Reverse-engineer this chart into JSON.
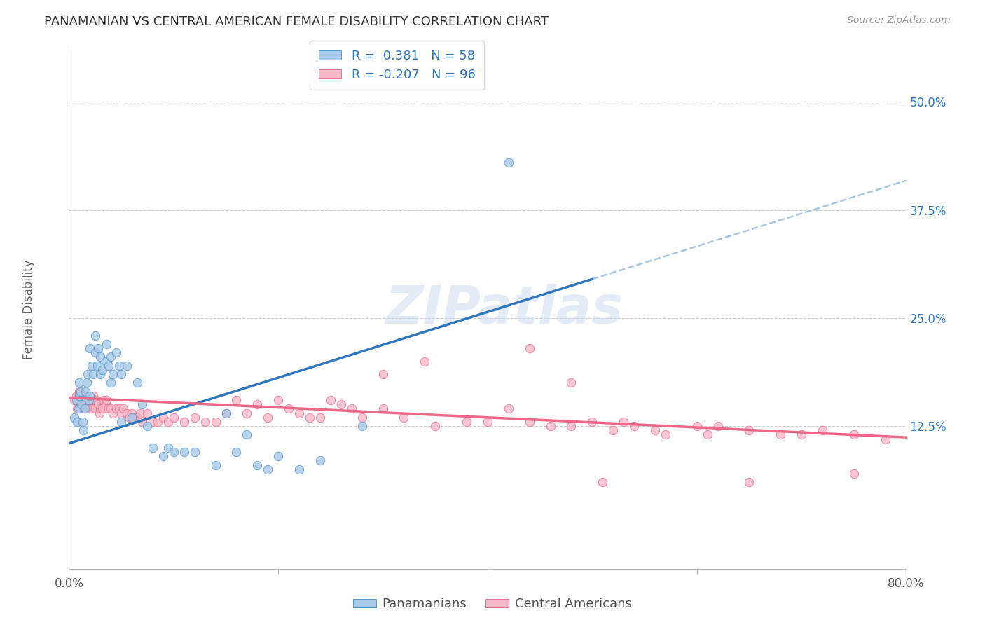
{
  "title": "PANAMANIAN VS CENTRAL AMERICAN FEMALE DISABILITY CORRELATION CHART",
  "source": "Source: ZipAtlas.com",
  "ylabel": "Female Disability",
  "ytick_labels": [
    "12.5%",
    "25.0%",
    "37.5%",
    "50.0%"
  ],
  "ytick_values": [
    0.125,
    0.25,
    0.375,
    0.5
  ],
  "xlim": [
    0.0,
    0.8
  ],
  "ylim": [
    -0.04,
    0.56
  ],
  "watermark_text": "ZIPatlas",
  "legend_R1": "0.381",
  "legend_N1": "58",
  "legend_R2": "-0.207",
  "legend_N2": "96",
  "color_blue_fill": "#a8c8e8",
  "color_blue_edge": "#5599cc",
  "color_pink_fill": "#f5b8c8",
  "color_pink_edge": "#e87090",
  "color_line_blue": "#3377bb",
  "color_line_pink": "#ee6688",
  "color_dashed": "#99bbdd",
  "background_color": "#ffffff",
  "grid_color": "#cccccc",
  "grid_style": "--",
  "blue_line_x0": 0.0,
  "blue_line_y0": 0.105,
  "blue_line_x1": 0.5,
  "blue_line_y1": 0.295,
  "pink_line_x0": 0.0,
  "pink_line_y0": 0.158,
  "pink_line_x1": 0.8,
  "pink_line_y1": 0.112,
  "dash_line_x0": 0.5,
  "dash_line_y0": 0.295,
  "dash_line_x1": 0.8,
  "dash_line_y1": 0.409,
  "pan_x": [
    0.005,
    0.007,
    0.008,
    0.009,
    0.01,
    0.01,
    0.011,
    0.012,
    0.013,
    0.014,
    0.015,
    0.016,
    0.017,
    0.018,
    0.019,
    0.02,
    0.02,
    0.022,
    0.023,
    0.025,
    0.025,
    0.027,
    0.028,
    0.03,
    0.03,
    0.032,
    0.035,
    0.036,
    0.038,
    0.04,
    0.04,
    0.042,
    0.045,
    0.048,
    0.05,
    0.055,
    0.06,
    0.065,
    0.07,
    0.075,
    0.08,
    0.09,
    0.095,
    0.1,
    0.11,
    0.12,
    0.14,
    0.16,
    0.18,
    0.2,
    0.22,
    0.24,
    0.15,
    0.17,
    0.19,
    0.05,
    0.28,
    0.42
  ],
  "pan_y": [
    0.135,
    0.155,
    0.13,
    0.145,
    0.16,
    0.175,
    0.165,
    0.15,
    0.13,
    0.12,
    0.145,
    0.165,
    0.175,
    0.185,
    0.155,
    0.16,
    0.215,
    0.195,
    0.185,
    0.21,
    0.23,
    0.195,
    0.215,
    0.185,
    0.205,
    0.19,
    0.2,
    0.22,
    0.195,
    0.205,
    0.175,
    0.185,
    0.21,
    0.195,
    0.185,
    0.195,
    0.135,
    0.175,
    0.15,
    0.125,
    0.1,
    0.09,
    0.1,
    0.095,
    0.095,
    0.095,
    0.08,
    0.095,
    0.08,
    0.09,
    0.075,
    0.085,
    0.14,
    0.115,
    0.075,
    0.13,
    0.125,
    0.43
  ],
  "cen_x": [
    0.005,
    0.007,
    0.008,
    0.009,
    0.01,
    0.011,
    0.012,
    0.013,
    0.014,
    0.015,
    0.016,
    0.017,
    0.018,
    0.019,
    0.02,
    0.021,
    0.022,
    0.023,
    0.025,
    0.026,
    0.028,
    0.029,
    0.03,
    0.032,
    0.033,
    0.035,
    0.036,
    0.038,
    0.04,
    0.042,
    0.045,
    0.048,
    0.05,
    0.052,
    0.055,
    0.058,
    0.06,
    0.062,
    0.065,
    0.068,
    0.07,
    0.075,
    0.08,
    0.085,
    0.09,
    0.095,
    0.1,
    0.11,
    0.12,
    0.13,
    0.14,
    0.15,
    0.16,
    0.17,
    0.18,
    0.19,
    0.2,
    0.21,
    0.22,
    0.23,
    0.24,
    0.25,
    0.26,
    0.27,
    0.28,
    0.3,
    0.32,
    0.35,
    0.38,
    0.4,
    0.42,
    0.44,
    0.46,
    0.48,
    0.5,
    0.52,
    0.54,
    0.56,
    0.6,
    0.62,
    0.65,
    0.68,
    0.7,
    0.72,
    0.75,
    0.78,
    0.3,
    0.34,
    0.44,
    0.48,
    0.53,
    0.57,
    0.61,
    0.65,
    0.51,
    0.75
  ],
  "cen_y": [
    0.155,
    0.16,
    0.145,
    0.155,
    0.165,
    0.15,
    0.16,
    0.15,
    0.145,
    0.155,
    0.15,
    0.155,
    0.16,
    0.15,
    0.145,
    0.155,
    0.145,
    0.16,
    0.145,
    0.155,
    0.15,
    0.14,
    0.145,
    0.145,
    0.155,
    0.15,
    0.155,
    0.145,
    0.145,
    0.14,
    0.145,
    0.145,
    0.14,
    0.145,
    0.14,
    0.135,
    0.14,
    0.135,
    0.135,
    0.14,
    0.13,
    0.14,
    0.13,
    0.13,
    0.135,
    0.13,
    0.135,
    0.13,
    0.135,
    0.13,
    0.13,
    0.14,
    0.155,
    0.14,
    0.15,
    0.135,
    0.155,
    0.145,
    0.14,
    0.135,
    0.135,
    0.155,
    0.15,
    0.145,
    0.135,
    0.145,
    0.135,
    0.125,
    0.13,
    0.13,
    0.145,
    0.13,
    0.125,
    0.125,
    0.13,
    0.12,
    0.125,
    0.12,
    0.125,
    0.125,
    0.12,
    0.115,
    0.115,
    0.12,
    0.115,
    0.11,
    0.185,
    0.2,
    0.215,
    0.175,
    0.13,
    0.115,
    0.115,
    0.06,
    0.06,
    0.07
  ]
}
